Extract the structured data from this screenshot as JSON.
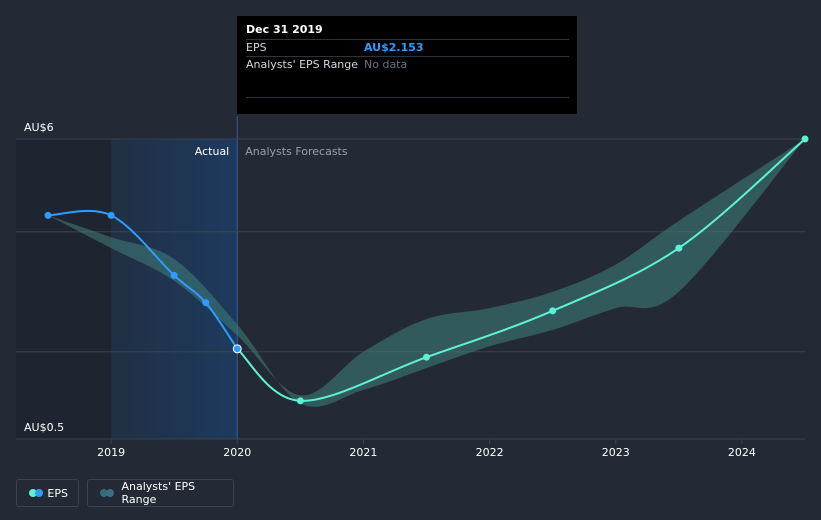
{
  "tooltip": {
    "title": "Dec 31 2019",
    "eps_label": "EPS",
    "eps_value": "AU$2.153",
    "range_label": "Analysts' EPS Range",
    "range_value": "No data"
  },
  "legend": {
    "eps_label": "EPS",
    "range_label": "Analysts' EPS Range"
  },
  "colors": {
    "background": "#232a35",
    "actual_line": "#2f9cff",
    "forecast_line": "#5ef2d5",
    "range_band": "#3f7f7a",
    "actual_shade": "#1d3a5e"
  },
  "chart_data": {
    "type": "line",
    "title": "",
    "xlabel": "",
    "ylabel": "",
    "xlim": [
      2018.5,
      2024.5
    ],
    "ylim": [
      0.5,
      6
    ],
    "y_axis_labels": [
      "AU$6",
      "AU$0.5"
    ],
    "x_ticks": [
      {
        "value": 2019,
        "label": "2019"
      },
      {
        "value": 2020,
        "label": "2020"
      },
      {
        "value": 2021,
        "label": "2021"
      },
      {
        "value": 2022,
        "label": "2022"
      },
      {
        "value": 2023,
        "label": "2023"
      },
      {
        "value": 2024,
        "label": "2024"
      }
    ],
    "gridlines": [
      6,
      4.3,
      2.1
    ],
    "actual_label": "Actual",
    "forecast_label": "Analysts Forecasts",
    "forecast_start": 2020,
    "highlight_start": 2019,
    "series": [
      {
        "name": "EPS (Actual)",
        "points": [
          [
            2018.5,
            4.6
          ],
          [
            2019.0,
            4.6
          ],
          [
            2019.5,
            3.5
          ],
          [
            2019.75,
            3.0
          ],
          [
            2020.0,
            2.153
          ]
        ]
      },
      {
        "name": "EPS (Forecast)",
        "points": [
          [
            2020.0,
            2.153
          ],
          [
            2020.5,
            1.2
          ],
          [
            2021.5,
            2.0
          ],
          [
            2022.5,
            2.85
          ],
          [
            2023.5,
            4.0
          ],
          [
            2024.5,
            6.0
          ]
        ]
      }
    ],
    "range": {
      "name": "Analysts' EPS Range",
      "upper": [
        [
          2018.5,
          4.6
        ],
        [
          2019.0,
          4.0
        ],
        [
          2019.5,
          3.4
        ],
        [
          2020.0,
          2.4
        ],
        [
          2020.5,
          1.3
        ],
        [
          2021.0,
          2.1
        ],
        [
          2021.5,
          2.7
        ],
        [
          2022.0,
          2.9
        ],
        [
          2022.5,
          3.2
        ],
        [
          2023.0,
          3.7
        ],
        [
          2023.5,
          4.5
        ],
        [
          2024.5,
          6.0
        ]
      ],
      "lower": [
        [
          2018.5,
          4.6
        ],
        [
          2019.0,
          4.2
        ],
        [
          2019.5,
          3.8
        ],
        [
          2020.0,
          2.6
        ],
        [
          2020.5,
          1.15
        ],
        [
          2021.0,
          1.4
        ],
        [
          2021.5,
          1.8
        ],
        [
          2022.0,
          2.2
        ],
        [
          2022.5,
          2.5
        ],
        [
          2023.0,
          2.9
        ],
        [
          2023.5,
          3.2
        ],
        [
          2024.5,
          6.0
        ]
      ]
    }
  }
}
